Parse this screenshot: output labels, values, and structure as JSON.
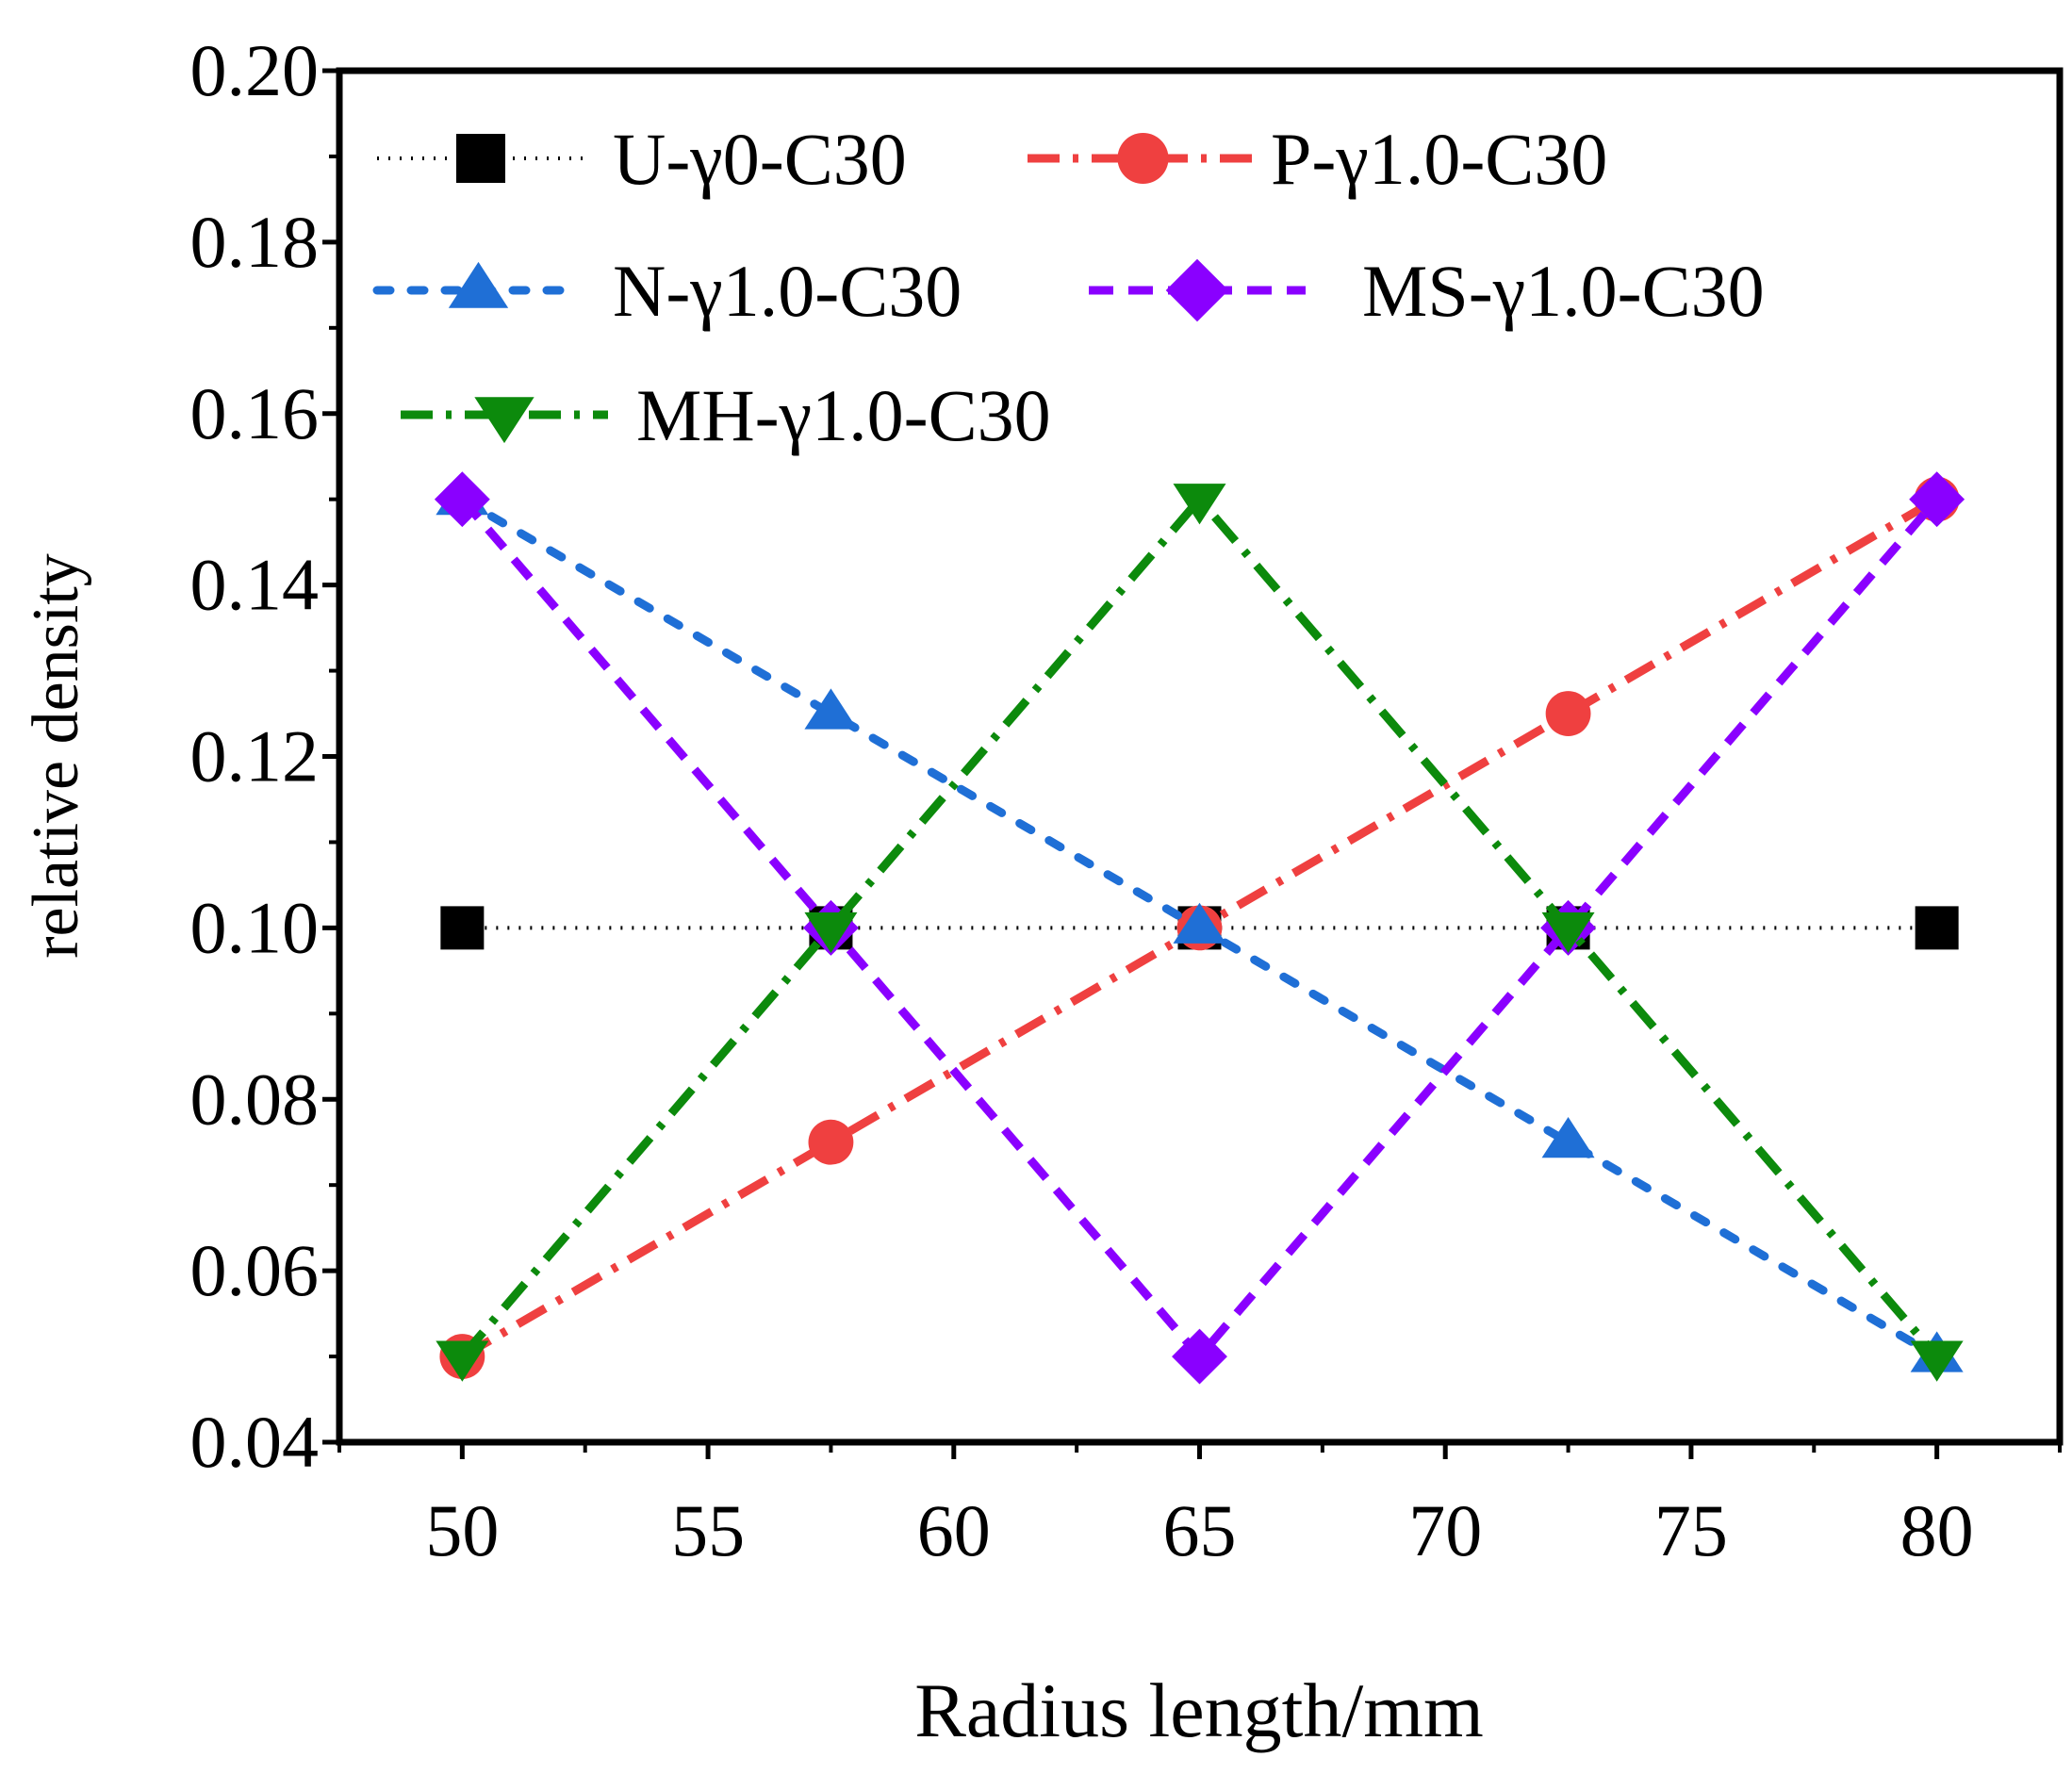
{
  "chart_data": {
    "type": "line",
    "xlabel": "Radius length/mm",
    "ylabel": "relative density",
    "xlim": [
      47.5,
      82.5
    ],
    "ylim": [
      0.04,
      0.2
    ],
    "x_ticks": [
      "50",
      "55",
      "60",
      "65",
      "70",
      "75",
      "80"
    ],
    "x_tick_values": [
      50,
      55,
      60,
      65,
      70,
      75,
      80
    ],
    "y_ticks": [
      "0.04",
      "0.06",
      "0.08",
      "0.10",
      "0.12",
      "0.14",
      "0.16",
      "0.18",
      "0.20"
    ],
    "y_tick_values": [
      0.04,
      0.06,
      0.08,
      0.1,
      0.12,
      0.14,
      0.16,
      0.18,
      0.2
    ],
    "x": [
      50,
      57.5,
      65,
      72.5,
      80
    ],
    "legend_position": "top",
    "series": [
      {
        "name": "U-γ0-C30",
        "values": [
          0.1,
          0.1,
          0.1,
          0.1,
          0.1
        ],
        "color": "#000000",
        "marker": "square",
        "line_style": "dot"
      },
      {
        "name": "P-γ1.0-C30",
        "values": [
          0.05,
          0.075,
          0.1,
          0.125,
          0.15
        ],
        "color": "#ef4040",
        "marker": "circle",
        "line_style": "dash-dot"
      },
      {
        "name": "N-γ1.0-C30",
        "values": [
          0.15,
          0.125,
          0.1,
          0.075,
          0.05
        ],
        "color": "#1f6fd6",
        "marker": "triangle-up",
        "line_style": "short-dot"
      },
      {
        "name": "MS-γ1.0-C30",
        "values": [
          0.15,
          0.1,
          0.05,
          0.1,
          0.15
        ],
        "color": "#8a00ff",
        "marker": "diamond",
        "line_style": "dash"
      },
      {
        "name": "MH-γ1.0-C30",
        "values": [
          0.05,
          0.1,
          0.15,
          0.1,
          0.05
        ],
        "color": "#0c8a0c",
        "marker": "triangle-down",
        "line_style": "dash-dot"
      }
    ]
  }
}
